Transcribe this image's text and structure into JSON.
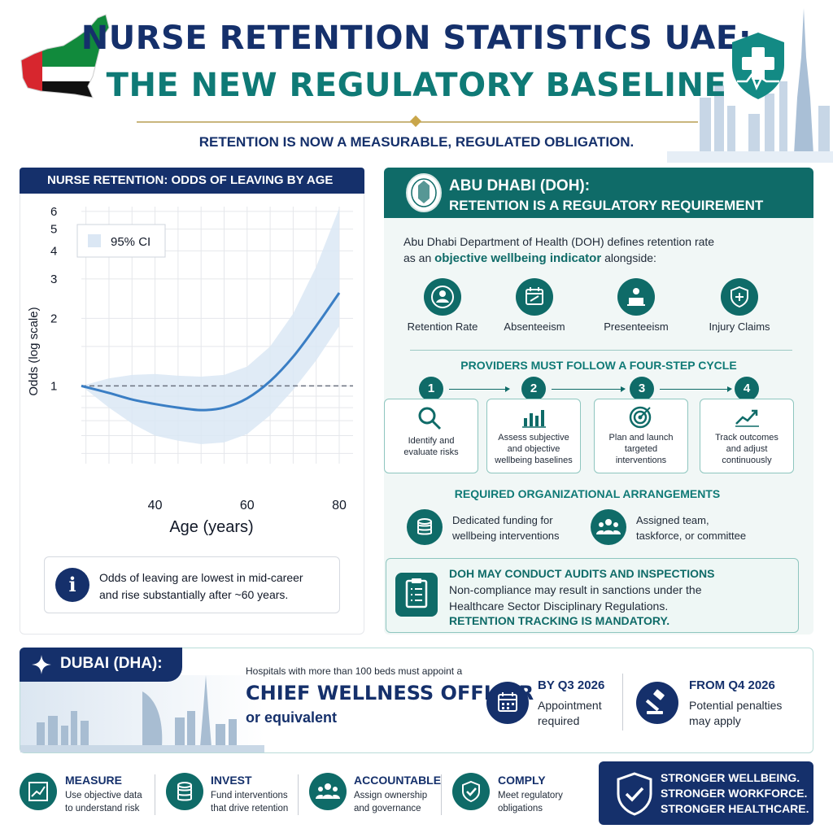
{
  "header": {
    "title_line1": "NURSE RETENTION STATISTICS UAE:",
    "title_line2": "THE NEW REGULATORY BASELINE",
    "subtitle": "RETENTION IS NOW A MEASURABLE, REGULATED OBLIGATION."
  },
  "chart_card": {
    "heading": "NURSE RETENTION: ODDS OF LEAVING BY AGE",
    "note": [
      "Odds of leaving are lowest in mid-career",
      "and rise substantially after ~60 years."
    ],
    "note_icon_text": "i"
  },
  "chart_data": {
    "type": "line",
    "title": "NURSE RETENTION: ODDS OF LEAVING BY AGE",
    "xlabel": "Age (years)",
    "ylabel": "Odds (log scale)",
    "x_ticks": [
      40,
      60,
      80
    ],
    "y_ticks": [
      1,
      2,
      3,
      4,
      5,
      6
    ],
    "xlim": [
      24,
      83
    ],
    "ylim": [
      0.45,
      6.3
    ],
    "y_scale": "log",
    "reference_line": 1,
    "legend": {
      "label": "95% CI",
      "position": "top-left"
    },
    "grid": true,
    "series": [
      {
        "x": [
          24,
          30,
          35,
          40,
          45,
          50,
          55,
          60,
          65,
          70,
          75,
          80
        ],
        "y": [
          1.0,
          0.93,
          0.87,
          0.83,
          0.8,
          0.78,
          0.8,
          0.88,
          1.05,
          1.35,
          1.85,
          2.6
        ],
        "lower": [
          1.0,
          0.8,
          0.68,
          0.6,
          0.57,
          0.55,
          0.56,
          0.61,
          0.74,
          0.96,
          1.3,
          1.85
        ],
        "upper": [
          1.0,
          1.08,
          1.12,
          1.13,
          1.11,
          1.1,
          1.12,
          1.22,
          1.5,
          2.1,
          3.4,
          6.2
        ]
      }
    ],
    "colors": {
      "line": "#3a7ec4",
      "band": "#dbe7f4",
      "reference": "#6b7280"
    }
  },
  "doh": {
    "title_line1": "ABU DHABI (DOH):",
    "title_line2": "RETENTION IS A REGULATORY REQUIREMENT",
    "intro_line1": "Abu Dhabi Department of Health (DOH) defines retention rate",
    "intro_pre": "as an ",
    "intro_highlight": "objective wellbeing indicator",
    "intro_post": " alongside:",
    "indicators": [
      {
        "label": "Retention Rate",
        "icon": "group-icon"
      },
      {
        "label": "Absenteeism",
        "icon": "calendar-icon"
      },
      {
        "label": "Presenteeism",
        "icon": "person-desk-icon"
      },
      {
        "label": "Injury Claims",
        "icon": "shield-plus-icon"
      }
    ],
    "cycle_heading": "PROVIDERS MUST FOLLOW A FOUR-STEP CYCLE",
    "steps": [
      {
        "number": "1",
        "text": [
          "Identify and",
          "evaluate risks"
        ],
        "icon": "magnifier-icon"
      },
      {
        "number": "2",
        "text": [
          "Assess subjective",
          "and objective",
          "wellbeing baselines"
        ],
        "icon": "bar-chart-icon"
      },
      {
        "number": "3",
        "text": [
          "Plan and launch",
          "targeted",
          "interventions"
        ],
        "icon": "target-icon"
      },
      {
        "number": "4",
        "text": [
          "Track outcomes",
          "and adjust",
          "continuously"
        ],
        "icon": "trend-icon"
      }
    ],
    "org_heading": "REQUIRED ORGANIZATIONAL ARRANGEMENTS",
    "org_items": [
      {
        "text": [
          "Dedicated funding for",
          "wellbeing interventions"
        ],
        "icon": "coins-icon"
      },
      {
        "text": [
          "Assigned team,",
          "taskforce, or committee"
        ],
        "icon": "team-icon"
      }
    ],
    "audit_heading": "DOH MAY CONDUCT AUDITS AND INSPECTIONS",
    "audit_line1": "Non-compliance may result in sanctions under the",
    "audit_line2": "Healthcare Sector Disciplinary Regulations.",
    "audit_line3": "RETENTION TRACKING IS MANDATORY."
  },
  "dubai": {
    "label": "DUBAI (DHA):",
    "line1": "Hospitals with more than 100 beds must appoint a",
    "line2": "CHIEF WELLNESS OFFICER",
    "line3": "or equivalent",
    "deadlines": [
      {
        "heading": "BY Q3 2026",
        "text": [
          "Appointment",
          "required"
        ],
        "icon": "calendar-icon"
      },
      {
        "heading": "FROM Q4 2026",
        "text": [
          "Potential penalties",
          "may apply"
        ],
        "icon": "gavel-icon"
      }
    ]
  },
  "bottom": {
    "items": [
      {
        "heading": "MEASURE",
        "text": [
          "Use objective data",
          "to understand risk"
        ],
        "icon": "chart-icon"
      },
      {
        "heading": "INVEST",
        "text": [
          "Fund interventions",
          "that drive retention"
        ],
        "icon": "coins-icon"
      },
      {
        "heading": "ACCOUNTABLE",
        "text": [
          "Assign ownership",
          "and governance"
        ],
        "icon": "team-icon"
      },
      {
        "heading": "COMPLY",
        "text": [
          "Meet regulatory",
          "obligations"
        ],
        "icon": "shield-check-icon"
      }
    ],
    "final": [
      "STRONGER WELLBEING.",
      "STRONGER WORKFORCE.",
      "STRONGER HEALTHCARE."
    ]
  },
  "colors": {
    "navy": "#15306b",
    "teal": "#0f6b68",
    "accent_gold": "#c9a64a"
  }
}
